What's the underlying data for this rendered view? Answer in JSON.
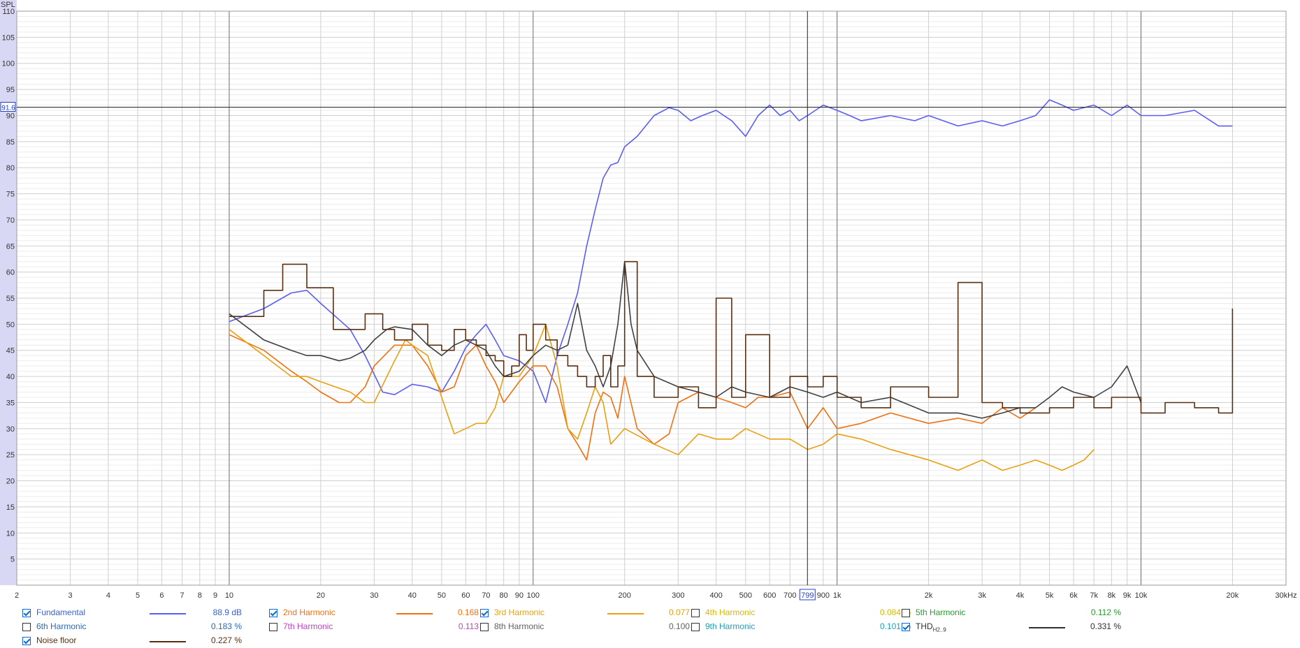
{
  "chart_data": {
    "type": "line",
    "y_axis_title": "SPL",
    "x_axis_unit": "30kHz",
    "ylim": [
      0,
      110
    ],
    "xlim": [
      2,
      30000
    ],
    "x_scale": "log",
    "grid": true,
    "y_ticks": [
      "5",
      "10",
      "15",
      "20",
      "25",
      "30",
      "35",
      "40",
      "45",
      "50",
      "55",
      "60",
      "65",
      "70",
      "75",
      "80",
      "85",
      "90",
      "95",
      "100",
      "105",
      "110"
    ],
    "x_ticks": [
      {
        "v": 2,
        "label": "2"
      },
      {
        "v": 3,
        "label": "3"
      },
      {
        "v": 4,
        "label": "4"
      },
      {
        "v": 5,
        "label": "5"
      },
      {
        "v": 6,
        "label": "6"
      },
      {
        "v": 7,
        "label": "7"
      },
      {
        "v": 8,
        "label": "8"
      },
      {
        "v": 9,
        "label": "9"
      },
      {
        "v": 10,
        "label": "10"
      },
      {
        "v": 20,
        "label": "20"
      },
      {
        "v": 30,
        "label": "30"
      },
      {
        "v": 40,
        "label": "40"
      },
      {
        "v": 50,
        "label": "50"
      },
      {
        "v": 60,
        "label": "60"
      },
      {
        "v": 70,
        "label": "70"
      },
      {
        "v": 80,
        "label": "80"
      },
      {
        "v": 90,
        "label": "90"
      },
      {
        "v": 100,
        "label": "100"
      },
      {
        "v": 200,
        "label": "200"
      },
      {
        "v": 300,
        "label": "300"
      },
      {
        "v": 400,
        "label": "400"
      },
      {
        "v": 500,
        "label": "500"
      },
      {
        "v": 600,
        "label": "600"
      },
      {
        "v": 700,
        "label": "700"
      },
      {
        "v": 900,
        "label": "900"
      },
      {
        "v": 1000,
        "label": "1k"
      },
      {
        "v": 2000,
        "label": "2k"
      },
      {
        "v": 3000,
        "label": "3k"
      },
      {
        "v": 4000,
        "label": "4k"
      },
      {
        "v": 5000,
        "label": "5k"
      },
      {
        "v": 6000,
        "label": "6k"
      },
      {
        "v": 7000,
        "label": "7k"
      },
      {
        "v": 8000,
        "label": "8k"
      },
      {
        "v": 9000,
        "label": "9k"
      },
      {
        "v": 10000,
        "label": "10k"
      },
      {
        "v": 20000,
        "label": "20k"
      }
    ],
    "cursor": {
      "x": 799,
      "x_label": "799",
      "y": 91.6,
      "y_label": "91.6"
    },
    "series": [
      {
        "name": "Fundamental",
        "color": "#5a5ef0",
        "x": [
          10,
          13,
          16,
          18,
          20,
          25,
          28,
          32,
          35,
          40,
          45,
          50,
          55,
          60,
          65,
          70,
          75,
          80,
          90,
          100,
          110,
          120,
          130,
          140,
          150,
          160,
          170,
          180,
          190,
          200,
          220,
          250,
          280,
          300,
          330,
          360,
          400,
          450,
          500,
          550,
          600,
          650,
          700,
          750,
          800,
          900,
          1000,
          1100,
          1200,
          1500,
          1800,
          2000,
          2500,
          3000,
          3500,
          4000,
          4500,
          5000,
          5500,
          6000,
          7000,
          8000,
          9000,
          10000,
          12000,
          15000,
          18000,
          20000
        ],
        "y": [
          50.5,
          53,
          56,
          56.5,
          54,
          49,
          44,
          37,
          36.5,
          38.5,
          38,
          37,
          41,
          45.5,
          48,
          50,
          47,
          44,
          43,
          41,
          35,
          44,
          50,
          56,
          65,
          72,
          78,
          80.5,
          81,
          84,
          86,
          90,
          91.5,
          91,
          89,
          90,
          91,
          89,
          86,
          90,
          92,
          90,
          91,
          89,
          90,
          92,
          91,
          90,
          89,
          90,
          89,
          90,
          88,
          89,
          88,
          89,
          90,
          93,
          92,
          91,
          92,
          90,
          92,
          90,
          90,
          91,
          88,
          88
        ]
      },
      {
        "name": "2nd Harmonic",
        "color": "#f07010",
        "x": [
          10,
          13,
          16,
          18,
          20,
          23,
          25,
          28,
          30,
          35,
          40,
          45,
          50,
          55,
          60,
          65,
          70,
          75,
          80,
          90,
          100,
          110,
          120,
          130,
          140,
          150,
          160,
          170,
          180,
          190,
          200,
          220,
          250,
          280,
          300,
          350,
          400,
          450,
          500,
          550,
          600,
          700,
          800,
          900,
          1000,
          1200,
          1500,
          2000,
          2500,
          3000,
          3500,
          4000,
          4500
        ],
        "y": [
          48,
          45,
          41,
          39,
          37,
          35,
          35,
          38,
          42,
          46,
          46,
          42,
          37,
          38,
          44,
          46,
          42,
          39,
          35,
          39,
          42,
          42,
          38,
          30,
          27,
          24,
          33,
          37,
          36,
          32,
          40,
          30,
          27,
          29,
          35,
          37,
          36,
          35,
          34,
          36,
          36,
          37,
          30,
          34,
          30,
          31,
          33,
          31,
          32,
          31,
          34,
          32,
          34
        ]
      },
      {
        "name": "3rd Harmonic",
        "color": "#e8a010",
        "x": [
          10,
          13,
          16,
          18,
          20,
          25,
          28,
          30,
          35,
          38,
          40,
          45,
          50,
          55,
          60,
          65,
          70,
          75,
          80,
          90,
          100,
          110,
          120,
          130,
          140,
          150,
          160,
          170,
          180,
          200,
          250,
          300,
          350,
          400,
          450,
          500,
          600,
          700,
          800,
          900,
          1000,
          1200,
          1500,
          2000,
          2500,
          3000,
          3500,
          4000,
          4500,
          5000,
          5500,
          6000,
          6500,
          7000
        ],
        "y": [
          49,
          44,
          40,
          40,
          39,
          37,
          35,
          35,
          43,
          47,
          46,
          44,
          36,
          29,
          30,
          31,
          31,
          34,
          40,
          40,
          44,
          50,
          42,
          30,
          28,
          33,
          38,
          35,
          27,
          30,
          27,
          25,
          29,
          28,
          28,
          30,
          28,
          28,
          26,
          27,
          29,
          28,
          26,
          24,
          22,
          24,
          22,
          23,
          24,
          23,
          22,
          23,
          24,
          26
        ]
      },
      {
        "name": "THD H2..9",
        "color": "#404040",
        "x": [
          10,
          13,
          16,
          18,
          20,
          23,
          25,
          28,
          30,
          33,
          35,
          40,
          45,
          50,
          55,
          60,
          65,
          70,
          75,
          80,
          90,
          100,
          110,
          120,
          130,
          140,
          150,
          160,
          170,
          180,
          190,
          200,
          210,
          220,
          250,
          300,
          350,
          400,
          450,
          500,
          600,
          700,
          800,
          900,
          1000,
          1200,
          1500,
          2000,
          2500,
          3000,
          3500,
          4000,
          4500,
          5000,
          5500,
          6000,
          7000,
          8000,
          9000,
          10000
        ],
        "y": [
          52,
          47,
          45,
          44,
          44,
          43,
          43.5,
          45,
          47,
          49,
          49.5,
          49,
          46,
          44,
          46,
          47,
          46,
          45,
          42,
          40,
          41,
          44,
          46,
          45,
          46,
          54,
          45,
          42,
          38,
          42,
          50,
          62,
          50,
          45,
          40,
          38,
          37,
          36,
          38,
          37,
          36,
          38,
          37,
          36,
          37,
          35,
          36,
          33,
          33,
          32,
          33,
          34,
          34,
          36,
          38,
          37,
          36,
          38,
          42,
          35
        ]
      },
      {
        "name": "Noise floor",
        "color": "#5a2e10",
        "step": true,
        "x": [
          10,
          13,
          15,
          18,
          22,
          28,
          32,
          35,
          40,
          45,
          50,
          55,
          60,
          65,
          70,
          75,
          80,
          85,
          90,
          95,
          100,
          110,
          120,
          130,
          140,
          150,
          160,
          170,
          180,
          190,
          200,
          220,
          250,
          300,
          350,
          400,
          450,
          500,
          600,
          700,
          800,
          900,
          1000,
          1200,
          1500,
          2000,
          2500,
          3000,
          3500,
          4000,
          5000,
          6000,
          7000,
          8000,
          10000,
          12000,
          15000,
          18000,
          20000
        ],
        "y": [
          51.5,
          56.5,
          61.5,
          57,
          49,
          52,
          49,
          47,
          50,
          46,
          45,
          49,
          47,
          46,
          44,
          43,
          40,
          42,
          48,
          45,
          50,
          47,
          44,
          42,
          40,
          38,
          40,
          44,
          38,
          42,
          62,
          40,
          36,
          38,
          34,
          55,
          36,
          48,
          36,
          40,
          38,
          40,
          36,
          34,
          38,
          36,
          58,
          35,
          34,
          33,
          34,
          36,
          34,
          36,
          33,
          35,
          34,
          33,
          53
        ]
      }
    ]
  },
  "legend": {
    "rows": [
      [
        {
          "checked": true,
          "name": "Fundamental",
          "value": "88.9 dB",
          "color": "#5a5ef0",
          "name_color": "#3a5fd0",
          "line": true
        },
        {
          "checked": true,
          "name": "2nd Harmonic",
          "value": "0.168 %",
          "color": "#f07010",
          "name_color": "#f07010",
          "line": true
        },
        {
          "checked": true,
          "name": "3rd Harmonic",
          "value": "0.077 %",
          "color": "#e8a010",
          "name_color": "#e8a010",
          "line": true
        },
        {
          "checked": false,
          "name": "4th Harmonic",
          "value": "0.084 %",
          "color": "#e0c000",
          "name_color": "#d8b800",
          "line": false
        },
        {
          "checked": false,
          "name": "5th Harmonic",
          "value": "0.112 %",
          "color": "#2a9a30",
          "name_color": "#2a9a30",
          "line": false
        }
      ],
      [
        {
          "checked": false,
          "name": "6th Harmonic",
          "value": "0.183 %",
          "color": "#2a6ab0",
          "name_color": "#2a6ab0",
          "line": false
        },
        {
          "checked": false,
          "name": "7th Harmonic",
          "value": "0.113 %",
          "color": "#c040c0",
          "name_color": "#c040c0",
          "line": false
        },
        {
          "checked": false,
          "name": "8th Harmonic",
          "value": "0.100 %",
          "color": "#707070",
          "name_color": "#606060",
          "line": false
        },
        {
          "checked": false,
          "name": "9th Harmonic",
          "value": "0.101 %",
          "color": "#20a0b0",
          "name_color": "#20a0b0",
          "line": false
        },
        {
          "checked": true,
          "name": "THD",
          "sub": "H2..9",
          "value": "0.331 %",
          "color": "#303030",
          "name_color": "#303030",
          "line": true
        }
      ],
      [
        {
          "checked": true,
          "name": "Noise floor",
          "value": "0.227 %",
          "color": "#5a2e10",
          "name_color": "#5a2e10",
          "line": true
        }
      ]
    ]
  }
}
